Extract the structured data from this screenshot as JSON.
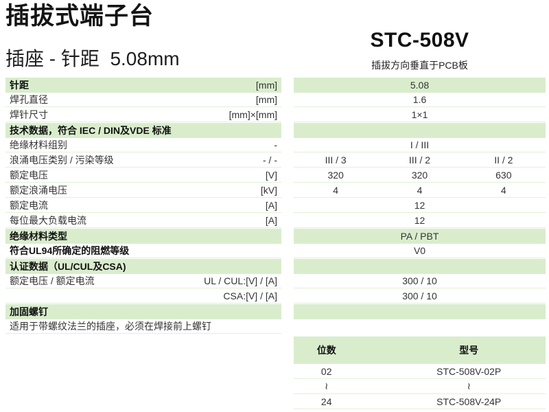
{
  "page": {
    "title": "插拔式端子台",
    "subtitle": "插座 - 针距  5.08mm",
    "model": "STC-508V",
    "model_note": "插拔方向垂直于PCB板"
  },
  "colors": {
    "section_green": "#d9edcd",
    "row_line": "#e0f1d7",
    "text": "#333333"
  },
  "spec_table": {
    "rows": [
      {
        "label": "针距",
        "unit": "[mm]",
        "values": [
          "5.08"
        ],
        "bold": true,
        "green": true
      },
      {
        "label": "焊孔直径",
        "unit": "[mm]",
        "values": [
          "1.6"
        ],
        "bold": false,
        "green": false
      },
      {
        "label": "焊针尺寸",
        "unit": "[mm]×[mm]",
        "values": [
          "1×1"
        ],
        "bold": false,
        "green": false
      },
      {
        "label": "技术数据，符合 IEC / DIN及VDE 标准",
        "unit": "",
        "values": [],
        "bold": true,
        "green": true
      },
      {
        "label": "绝缘材料组别",
        "unit": "-",
        "values": [
          "I / III"
        ],
        "bold": false,
        "green": false
      },
      {
        "label": "浪涌电压类别 / 污染等级",
        "unit": "- / -",
        "values": [
          "III / 3",
          "III / 2",
          "II / 2"
        ],
        "bold": false,
        "green": false
      },
      {
        "label": "额定电压",
        "unit": "[V]",
        "values": [
          "320",
          "320",
          "630"
        ],
        "bold": false,
        "green": false
      },
      {
        "label": "额定浪涌电压",
        "unit": "[kV]",
        "values": [
          "4",
          "4",
          "4"
        ],
        "bold": false,
        "green": false
      },
      {
        "label": "额定电流",
        "unit": "[A]",
        "values": [
          "12"
        ],
        "bold": false,
        "green": false
      },
      {
        "label": "每位最大负载电流",
        "unit": "[A]",
        "values": [
          "12"
        ],
        "bold": false,
        "green": false
      },
      {
        "label": "绝缘材料类型",
        "unit": "",
        "values": [
          "PA / PBT"
        ],
        "bold": true,
        "green": true
      },
      {
        "label": "符合UL94所确定的阻燃等级",
        "unit": "",
        "values": [
          "V0"
        ],
        "bold": true,
        "green": false
      },
      {
        "label": "认证数据（UL/CUL及CSA)",
        "unit": "",
        "values": [],
        "bold": true,
        "green": true
      },
      {
        "label": "额定电压 / 额定电流",
        "unit": "UL / CUL:[V] / [A]",
        "values": [
          "300 / 10"
        ],
        "bold": false,
        "green": false
      },
      {
        "label": "",
        "unit": "CSA:[V] / [A]",
        "values": [
          "300 / 10"
        ],
        "bold": false,
        "green": false
      },
      {
        "label": "加固螺钉",
        "unit": "",
        "values": [],
        "bold": true,
        "green": true
      },
      {
        "label": "适用于带螺纹法兰的插座，必须在焊接前上螺钉",
        "unit": "",
        "values": null,
        "bold": false,
        "green": false
      }
    ]
  },
  "model_table": {
    "headers": [
      "位数",
      "型号"
    ],
    "rows": [
      {
        "positions": "02",
        "part_number": "STC-508V-02P"
      },
      {
        "positions": "≀",
        "part_number": "≀"
      },
      {
        "positions": "24",
        "part_number": "STC-508V-24P"
      }
    ]
  }
}
